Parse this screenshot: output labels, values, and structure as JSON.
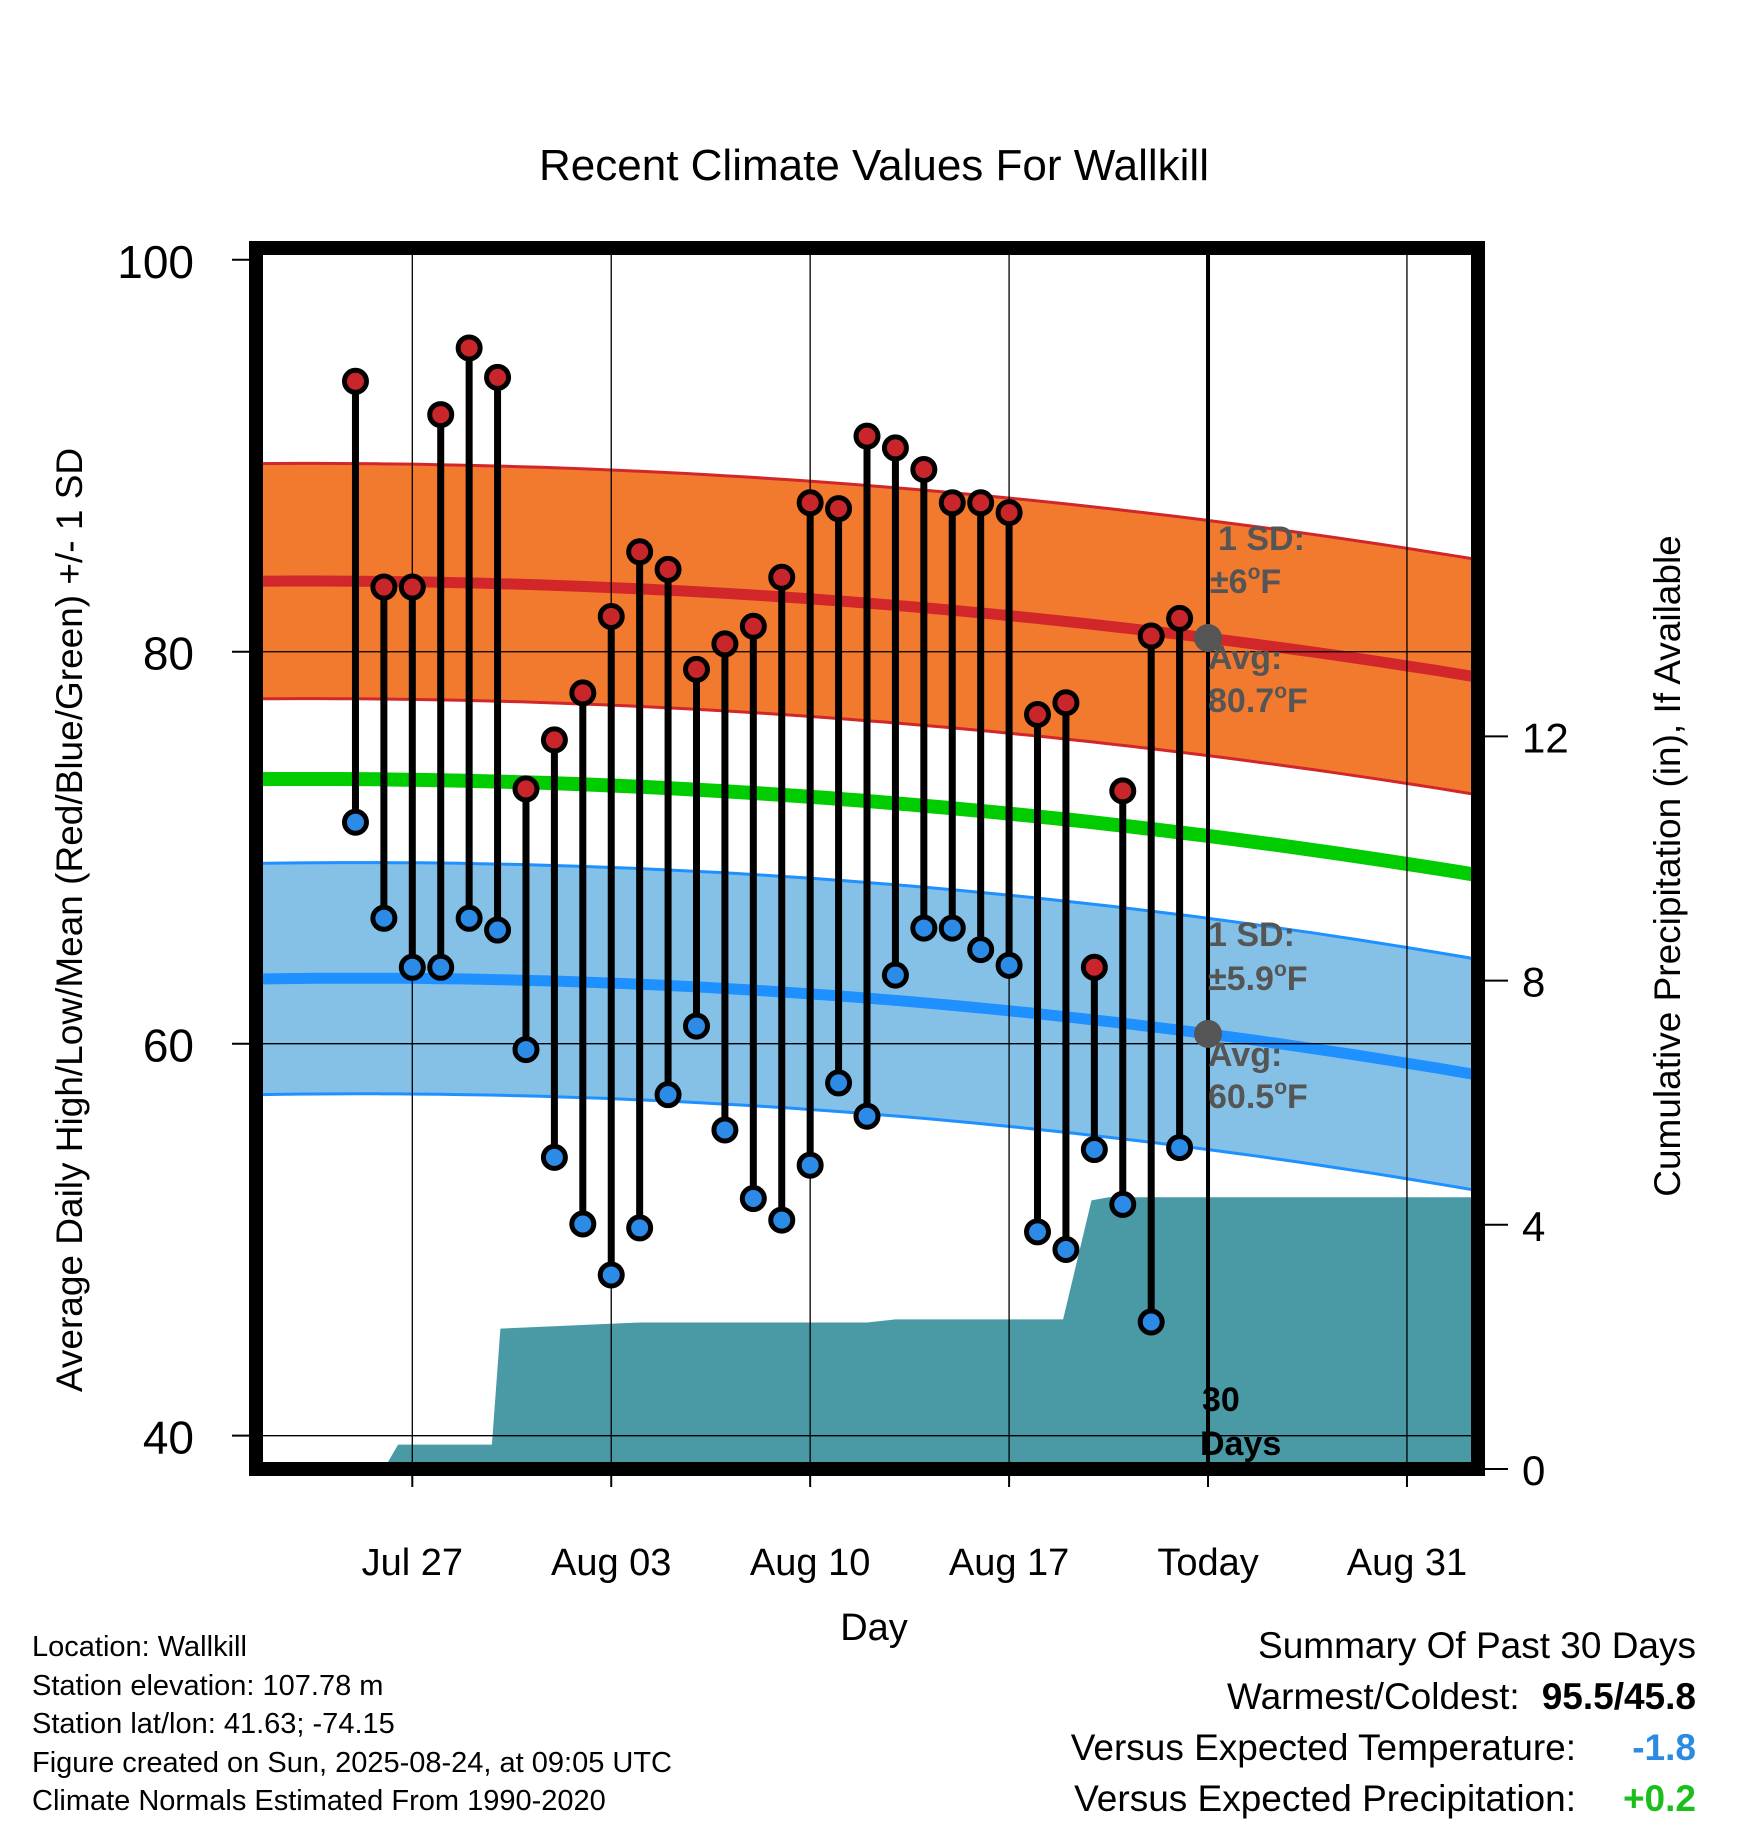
{
  "title": "Recent Climate Values For Wallkill",
  "chart_data": {
    "type": "line",
    "title": "Recent Climate Values For Wallkill",
    "xlabel": "Day",
    "ylabel": "Average Daily High/Low/Mean (Red/Blue/Green) +/- 1 SD",
    "y2label": "Cumulative Precipitation (in), If Available",
    "ylim": [
      38.3,
      100.6
    ],
    "y2lim": [
      0,
      20
    ],
    "yticks": [
      "40",
      "60",
      "80",
      "100"
    ],
    "y2ticks": [
      "0",
      "4",
      "8",
      "12"
    ],
    "x_day_range": [
      -33.5,
      9.5
    ],
    "x_ticks": [
      {
        "day": -28,
        "label": "Jul 27"
      },
      {
        "day": -21,
        "label": "Aug 03"
      },
      {
        "day": -14,
        "label": "Aug 10"
      },
      {
        "day": -7,
        "label": "Aug 17"
      },
      {
        "day": 0,
        "label": "Today"
      },
      {
        "day": 7,
        "label": "Aug 31"
      }
    ],
    "days": [
      -30,
      -29,
      -28,
      -27,
      -26,
      -25,
      -24,
      -23,
      -22,
      -21,
      -20,
      -19,
      -18,
      -17,
      -16,
      -15,
      -14,
      -13,
      -12,
      -11,
      -10,
      -9,
      -8,
      -7,
      -6,
      -5,
      -4,
      -3,
      -2,
      -1
    ],
    "daily_high": [
      93.8,
      83.3,
      83.3,
      92.1,
      95.5,
      94.0,
      73.0,
      75.5,
      77.9,
      81.8,
      85.1,
      84.2,
      79.1,
      80.4,
      81.3,
      83.8,
      87.6,
      87.3,
      91.0,
      90.4,
      89.3,
      87.6,
      87.6,
      87.1,
      76.8,
      77.4,
      63.9,
      72.9,
      80.8,
      81.7
    ],
    "daily_low": [
      71.3,
      66.4,
      63.9,
      63.9,
      66.4,
      65.8,
      59.7,
      54.2,
      50.8,
      48.2,
      50.6,
      57.4,
      60.9,
      55.6,
      52.1,
      51.0,
      53.8,
      58.0,
      56.3,
      63.5,
      65.9,
      65.9,
      64.8,
      64.0,
      50.4,
      49.5,
      54.6,
      51.8,
      45.8,
      54.7
    ],
    "normals": {
      "days": [
        -33.5,
        0,
        9.5
      ],
      "avg_high": [
        83.6,
        80.7,
        78.7
      ],
      "avg_low": [
        63.3,
        60.5,
        58.4
      ],
      "avg_mean": [
        73.5,
        70.6,
        68.6
      ],
      "high_sd": 6,
      "low_sd": 5.9
    },
    "cumulative_precip": {
      "x": [
        -29,
        -28.5,
        -26.1,
        -25.2,
        -24.9,
        -20,
        -19,
        -18,
        -14,
        -13,
        -12,
        -11,
        -9,
        -7,
        -6,
        -5.1,
        -4.1,
        -3.5,
        9.5
      ],
      "y": [
        0,
        0.4,
        0.4,
        0.4,
        2.3,
        2.4,
        2.4,
        2.4,
        2.4,
        2.4,
        2.4,
        2.45,
        2.45,
        2.45,
        2.45,
        2.45,
        4.4,
        4.45,
        4.45
      ]
    },
    "colors": {
      "high_band": "#f27a2e",
      "high_line": "#d2272a",
      "low_band": "#85c1e6",
      "low_line": "#1e90ff",
      "mean_line": "#00cc00",
      "precip": "#4a9aa6",
      "high_marker": "#c8262a",
      "low_marker": "#2c8be6",
      "avg_marker": "#555555"
    },
    "annotations": {
      "high_sd_label_1": "1 SD:",
      "high_sd_label_2": "±6",
      "high_sd_unit": "F",
      "high_avg_label_1": "Avg:",
      "high_avg_label_2": "80.7",
      "high_avg_unit": "F",
      "low_sd_label_1": "1 SD:",
      "low_sd_label_2": "±5.9",
      "low_sd_unit": "F",
      "low_avg_label_1": "Avg:",
      "low_avg_label_2": "60.5",
      "low_avg_unit": "F",
      "degree_sign": "o",
      "days_label_1": "30",
      "days_label_2": "Days"
    }
  },
  "footer": {
    "location": "Location: Wallkill",
    "elevation": "Station elevation: 107.78 m",
    "latlon": "Station lat/lon: 41.63; -74.15",
    "created": "Figure created on Sun, 2025-08-24, at 09:05 UTC",
    "normals": "Climate Normals Estimated From 1990-2020"
  },
  "summary": {
    "heading": "Summary Of Past 30 Days",
    "warm_cold_label": "Warmest/Coldest:",
    "warm_cold_value": "95.5/45.8",
    "temp_label": "Versus Expected Temperature:",
    "temp_value": "-1.8",
    "precip_label": "Versus Expected Precipitation:",
    "precip_value": "+0.2"
  }
}
